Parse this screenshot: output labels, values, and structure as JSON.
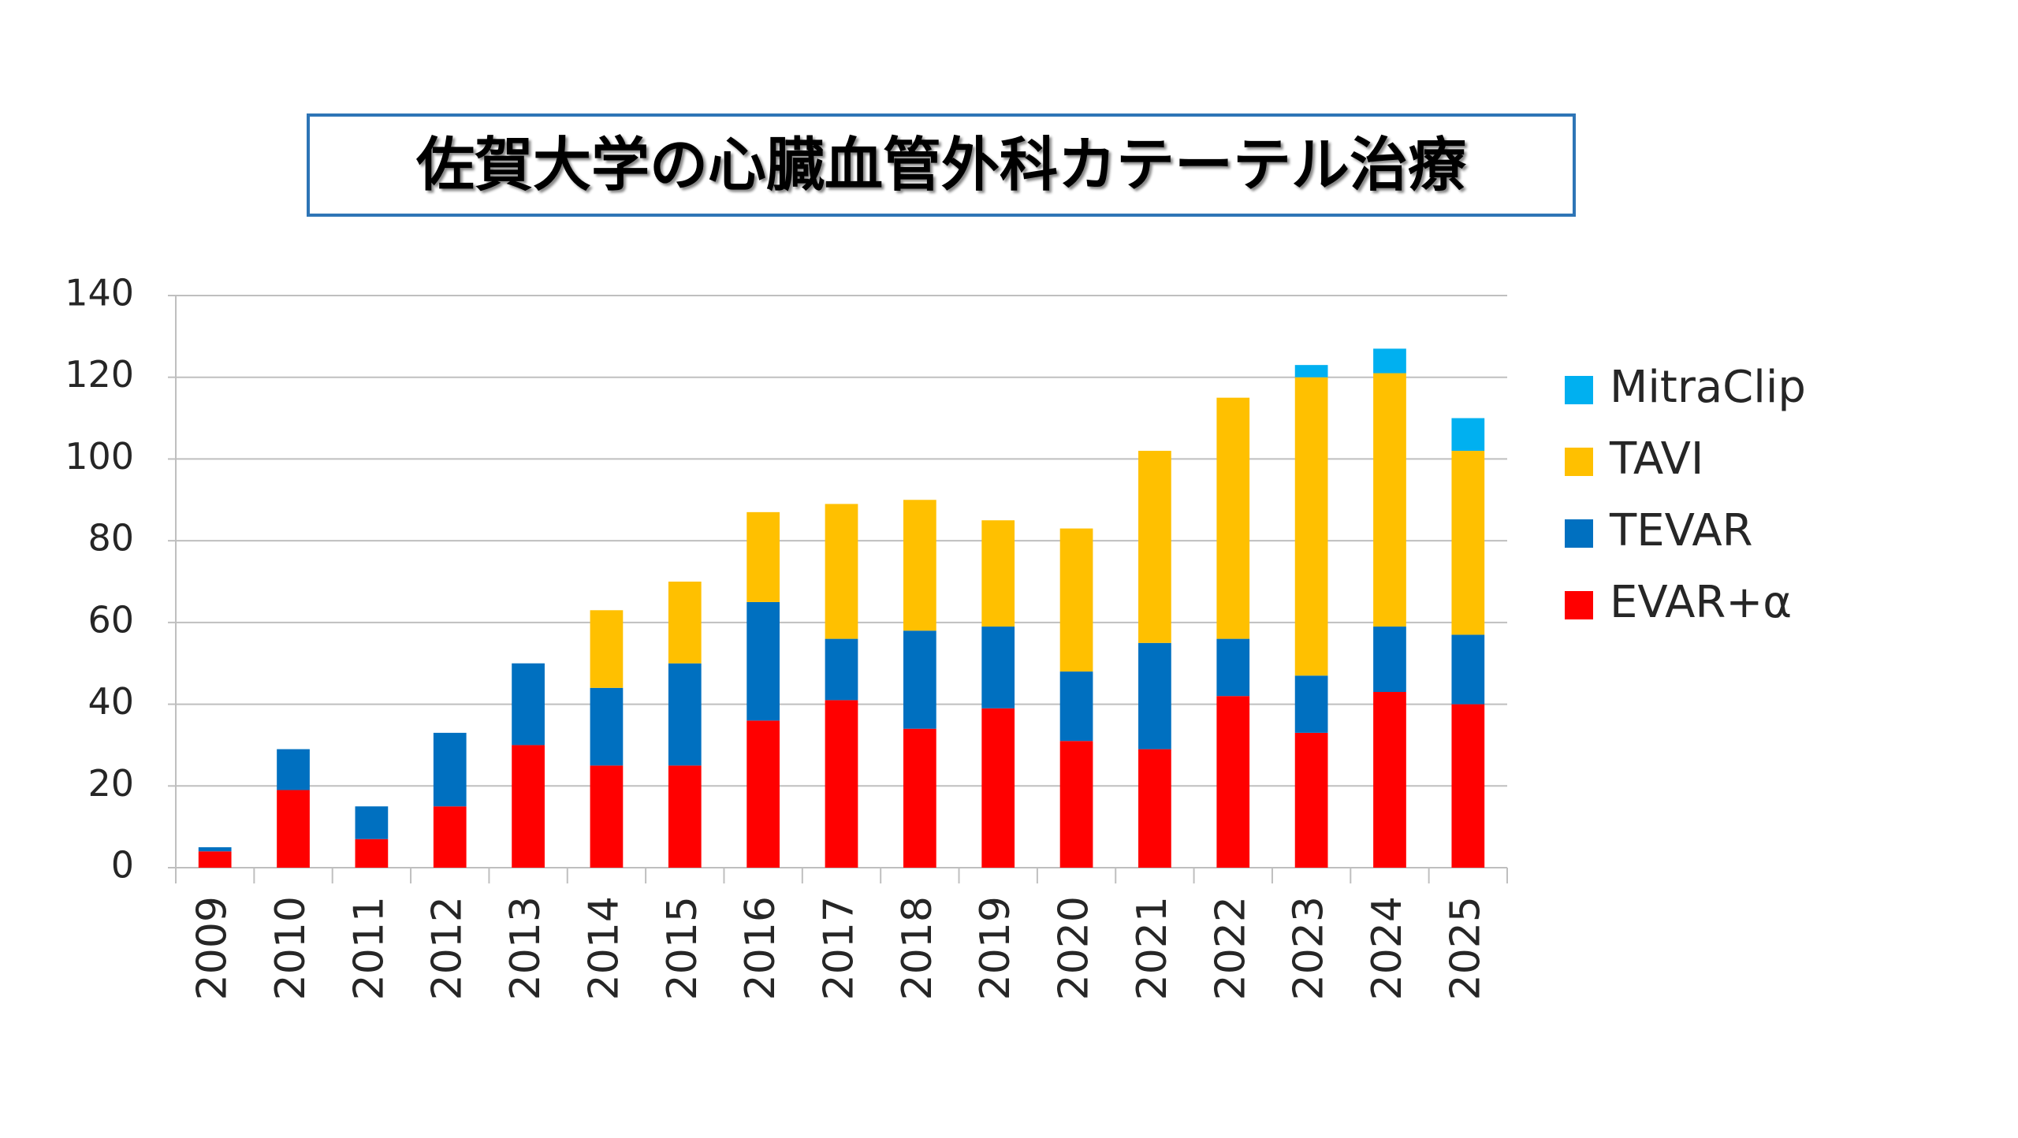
{
  "chart_data": {
    "type": "stacked-bar",
    "title": "佐賀大学の心臓血管外科カテーテル治療",
    "categories": [
      "2009",
      "2010",
      "2011",
      "2012",
      "2013",
      "2014",
      "2015",
      "2016",
      "2017",
      "2018",
      "2019",
      "2020",
      "2021",
      "2022",
      "2023",
      "2024",
      "2025"
    ],
    "series": [
      {
        "name": "EVAR+α",
        "color": "#ff0000",
        "values": [
          4,
          19,
          7,
          15,
          30,
          25,
          25,
          36,
          41,
          34,
          39,
          31,
          29,
          42,
          33,
          43,
          40
        ]
      },
      {
        "name": "TEVAR",
        "color": "#0070c0",
        "values": [
          1,
          10,
          8,
          18,
          20,
          19,
          25,
          29,
          15,
          24,
          20,
          17,
          26,
          14,
          14,
          16,
          17
        ]
      },
      {
        "name": "TAVI",
        "color": "#ffc000",
        "values": [
          null,
          null,
          null,
          null,
          null,
          19,
          20,
          22,
          33,
          32,
          26,
          35,
          47,
          59,
          73,
          62,
          45
        ]
      },
      {
        "name": "MitraClip",
        "color": "#00b0f0",
        "values": [
          null,
          null,
          null,
          null,
          null,
          null,
          null,
          null,
          null,
          null,
          null,
          null,
          null,
          null,
          3,
          6,
          8
        ]
      }
    ],
    "ylim": [
      0,
      140
    ],
    "yticks": [
      0,
      20,
      40,
      60,
      80,
      100,
      120,
      140
    ],
    "grid": true,
    "legend": "right"
  }
}
